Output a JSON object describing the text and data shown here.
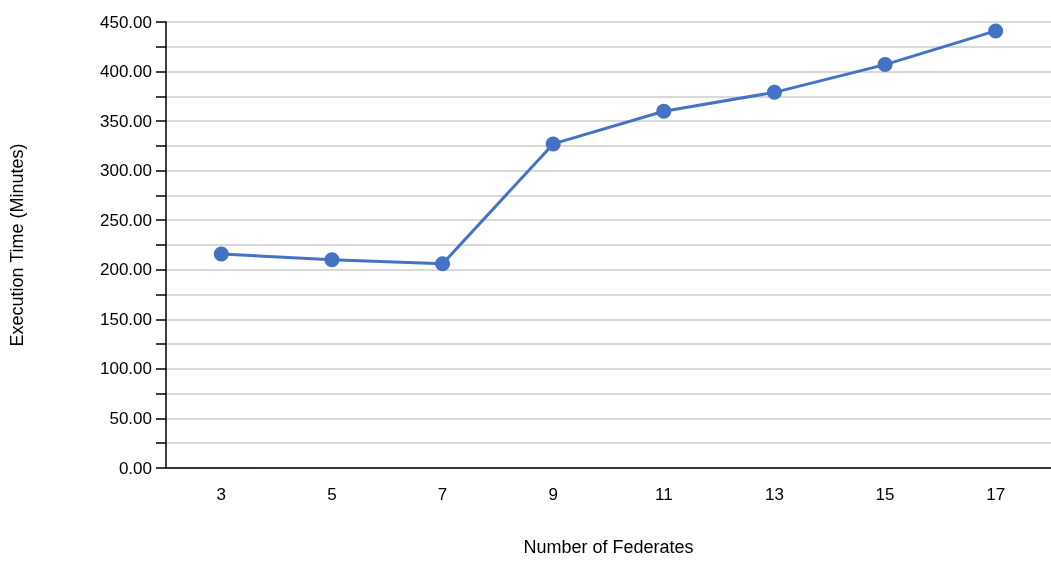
{
  "chart_data": {
    "type": "line",
    "xlabel": "Number of Federates",
    "ylabel": "Execution Time (Minutes)",
    "categories": [
      "3",
      "5",
      "7",
      "9",
      "11",
      "13",
      "15",
      "17"
    ],
    "series": [
      {
        "color": "#4472c4",
        "values": [
          216,
          210,
          206,
          327,
          360,
          379,
          407,
          441
        ]
      }
    ],
    "ylim": [
      0,
      450
    ],
    "yticks": [
      {
        "value": 0,
        "label": "0.00"
      },
      {
        "value": 25,
        "label": null
      },
      {
        "value": 50,
        "label": "50.00"
      },
      {
        "value": 75,
        "label": null
      },
      {
        "value": 100,
        "label": "100.00"
      },
      {
        "value": 125,
        "label": null
      },
      {
        "value": 150,
        "label": "150.00"
      },
      {
        "value": 175,
        "label": null
      },
      {
        "value": 200,
        "label": "200.00"
      },
      {
        "value": 225,
        "label": null
      },
      {
        "value": 250,
        "label": "250.00"
      },
      {
        "value": 275,
        "label": null
      },
      {
        "value": 300,
        "label": "300.00"
      },
      {
        "value": 325,
        "label": null
      },
      {
        "value": 350,
        "label": "350.00"
      },
      {
        "value": 375,
        "label": null
      },
      {
        "value": 400,
        "label": "400.00"
      },
      {
        "value": 425,
        "label": null
      },
      {
        "value": 450,
        "label": "450.00"
      }
    ],
    "grid": "y",
    "marker": "circle",
    "line_style": "solid"
  }
}
